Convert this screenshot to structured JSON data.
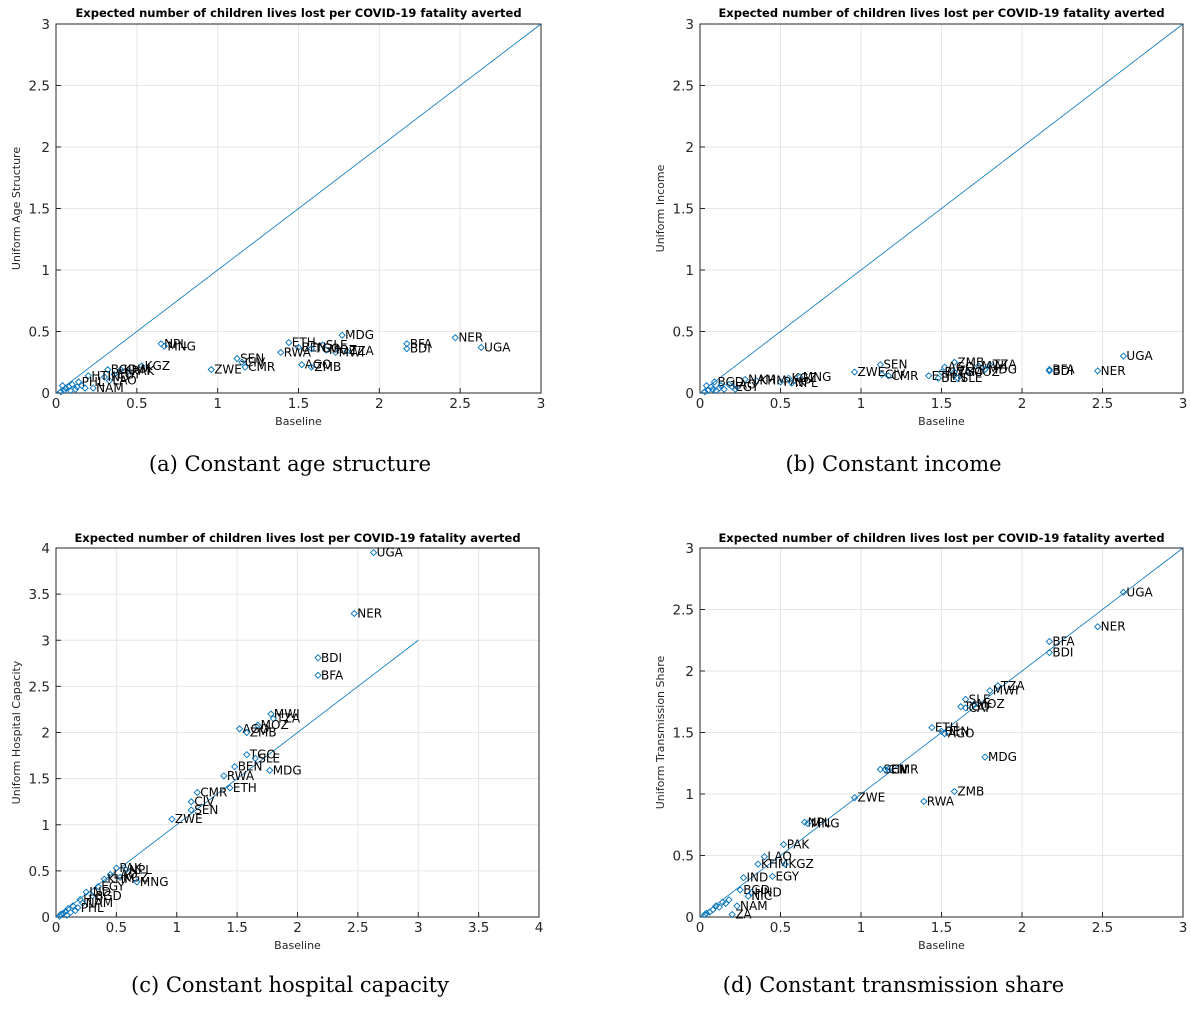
{
  "chart_data": [
    {
      "type": "scatter",
      "panel_id": "a",
      "title": "Expected number of children lives lost per COVID-19 fatality averted",
      "xlabel": "Baseline",
      "ylabel": "Uniform Age Structure",
      "xlim": [
        0,
        3
      ],
      "ylim": [
        0,
        3
      ],
      "xticks": [
        "0",
        "0.5",
        "1",
        "1.5",
        "2",
        "2.5",
        "3"
      ],
      "yticks": [
        "0",
        "0.5",
        "1",
        "1.5",
        "2",
        "2.5",
        "3"
      ],
      "grid": true,
      "reference_line": "y = x",
      "caption": "(a) Constant age structure",
      "points": [
        {
          "x": 2.63,
          "y": 0.37,
          "label": "UGA"
        },
        {
          "x": 2.47,
          "y": 0.45,
          "label": "NER"
        },
        {
          "x": 2.17,
          "y": 0.4,
          "label": "BFA"
        },
        {
          "x": 2.17,
          "y": 0.36,
          "label": "BDI"
        },
        {
          "x": 1.77,
          "y": 0.47,
          "label": "MDG"
        },
        {
          "x": 1.8,
          "y": 0.34,
          "label": "TZA"
        },
        {
          "x": 1.73,
          "y": 0.33,
          "label": "MWI"
        },
        {
          "x": 1.67,
          "y": 0.35,
          "label": "MOZ"
        },
        {
          "x": 1.65,
          "y": 0.39,
          "label": "SLE"
        },
        {
          "x": 1.44,
          "y": 0.41,
          "label": "ETH"
        },
        {
          "x": 1.5,
          "y": 0.37,
          "label": "BEN"
        },
        {
          "x": 1.58,
          "y": 0.36,
          "label": "TGO"
        },
        {
          "x": 1.39,
          "y": 0.33,
          "label": "RWA"
        },
        {
          "x": 1.52,
          "y": 0.23,
          "label": "AGO"
        },
        {
          "x": 1.58,
          "y": 0.21,
          "label": "ZMB"
        },
        {
          "x": 1.12,
          "y": 0.28,
          "label": "SEN"
        },
        {
          "x": 1.15,
          "y": 0.25,
          "label": "CIV"
        },
        {
          "x": 1.17,
          "y": 0.21,
          "label": "CMR"
        },
        {
          "x": 0.96,
          "y": 0.19,
          "label": "ZWE"
        },
        {
          "x": 0.65,
          "y": 0.4,
          "label": "NPL"
        },
        {
          "x": 0.67,
          "y": 0.38,
          "label": "MNG"
        },
        {
          "x": 0.53,
          "y": 0.22,
          "label": "KGZ"
        },
        {
          "x": 0.45,
          "y": 0.18,
          "label": "PAK"
        },
        {
          "x": 0.4,
          "y": 0.19,
          "label": "KHM"
        },
        {
          "x": 0.32,
          "y": 0.19,
          "label": "BGD"
        },
        {
          "x": 0.36,
          "y": 0.15,
          "label": "EGY"
        },
        {
          "x": 0.3,
          "y": 0.13,
          "label": "IND"
        },
        {
          "x": 0.33,
          "y": 0.1,
          "label": "LAO"
        },
        {
          "x": 0.2,
          "y": 0.14,
          "label": "HTI"
        },
        {
          "x": 0.23,
          "y": 0.04,
          "label": "NAM"
        },
        {
          "x": 0.14,
          "y": 0.09,
          "label": "PHL"
        },
        {
          "x": 0.1,
          "y": 0.07,
          "label": ""
        },
        {
          "x": 0.08,
          "y": 0.05,
          "label": ""
        },
        {
          "x": 0.06,
          "y": 0.04,
          "label": ""
        },
        {
          "x": 0.05,
          "y": 0.02,
          "label": ""
        },
        {
          "x": 0.12,
          "y": 0.03,
          "label": ""
        },
        {
          "x": 0.16,
          "y": 0.06,
          "label": ""
        },
        {
          "x": 0.18,
          "y": 0.04,
          "label": ""
        },
        {
          "x": 0.04,
          "y": 0.06,
          "label": ""
        },
        {
          "x": 0.03,
          "y": 0.01,
          "label": ""
        },
        {
          "x": 0.09,
          "y": 0.02,
          "label": ""
        },
        {
          "x": 0.13,
          "y": 0.05,
          "label": ""
        }
      ]
    },
    {
      "type": "scatter",
      "panel_id": "b",
      "title": "Expected number of children lives lost per COVID-19 fatality averted",
      "xlabel": "Baseline",
      "ylabel": "Uniform Income",
      "xlim": [
        0,
        3
      ],
      "ylim": [
        0,
        3
      ],
      "xticks": [
        "0",
        "0.5",
        "1",
        "1.5",
        "2",
        "2.5",
        "3"
      ],
      "yticks": [
        "0",
        "0.5",
        "1",
        "1.5",
        "2",
        "2.5",
        "3"
      ],
      "grid": true,
      "reference_line": "y = x",
      "caption": "(b) Constant income",
      "points": [
        {
          "x": 2.63,
          "y": 0.3,
          "label": "UGA"
        },
        {
          "x": 2.47,
          "y": 0.18,
          "label": "NER"
        },
        {
          "x": 2.17,
          "y": 0.19,
          "label": "BFA"
        },
        {
          "x": 2.17,
          "y": 0.18,
          "label": "BDI"
        },
        {
          "x": 1.8,
          "y": 0.23,
          "label": "TZA"
        },
        {
          "x": 1.73,
          "y": 0.22,
          "label": "MWI"
        },
        {
          "x": 1.67,
          "y": 0.17,
          "label": "MOZ"
        },
        {
          "x": 1.77,
          "y": 0.19,
          "label": "MDG"
        },
        {
          "x": 1.58,
          "y": 0.25,
          "label": "ZMB"
        },
        {
          "x": 1.52,
          "y": 0.21,
          "label": "AGO"
        },
        {
          "x": 1.5,
          "y": 0.17,
          "label": "RWA"
        },
        {
          "x": 1.58,
          "y": 0.17,
          "label": "TGO"
        },
        {
          "x": 1.42,
          "y": 0.14,
          "label": "ETH"
        },
        {
          "x": 1.48,
          "y": 0.12,
          "label": "BEN"
        },
        {
          "x": 1.6,
          "y": 0.12,
          "label": "SLE"
        },
        {
          "x": 1.12,
          "y": 0.23,
          "label": "SEN"
        },
        {
          "x": 1.13,
          "y": 0.15,
          "label": "CIV"
        },
        {
          "x": 1.17,
          "y": 0.14,
          "label": "CMR"
        },
        {
          "x": 0.96,
          "y": 0.17,
          "label": "ZWE"
        },
        {
          "x": 0.62,
          "y": 0.13,
          "label": "MNG"
        },
        {
          "x": 0.55,
          "y": 0.12,
          "label": "KGZ"
        },
        {
          "x": 0.5,
          "y": 0.09,
          "label": "PAK"
        },
        {
          "x": 0.57,
          "y": 0.08,
          "label": "NPL"
        },
        {
          "x": 0.35,
          "y": 0.1,
          "label": "KHM"
        },
        {
          "x": 0.28,
          "y": 0.11,
          "label": "NAM"
        },
        {
          "x": 0.18,
          "y": 0.07,
          "label": "LAO"
        },
        {
          "x": 0.09,
          "y": 0.09,
          "label": "BGD"
        },
        {
          "x": 0.2,
          "y": 0.05,
          "label": "EGY"
        },
        {
          "x": 0.07,
          "y": 0.05,
          "label": ""
        },
        {
          "x": 0.12,
          "y": 0.04,
          "label": ""
        },
        {
          "x": 0.05,
          "y": 0.02,
          "label": ""
        },
        {
          "x": 0.15,
          "y": 0.03,
          "label": ""
        },
        {
          "x": 0.04,
          "y": 0.06,
          "label": ""
        },
        {
          "x": 0.1,
          "y": 0.02,
          "label": ""
        },
        {
          "x": 0.03,
          "y": 0.01,
          "label": ""
        },
        {
          "x": 0.13,
          "y": 0.06,
          "label": ""
        },
        {
          "x": 0.22,
          "y": 0.03,
          "label": ""
        },
        {
          "x": 0.08,
          "y": 0.03,
          "label": ""
        }
      ]
    },
    {
      "type": "scatter",
      "panel_id": "c",
      "title": "Expected number of children lives lost per COVID-19 fatality averted",
      "xlabel": "Baseline",
      "ylabel": "Uniform Hospital Capacity",
      "xlim": [
        0,
        4
      ],
      "ylim": [
        0,
        4
      ],
      "xticks": [
        "0",
        "0.5",
        "1",
        "1.5",
        "2",
        "2.5",
        "3",
        "3.5",
        "4"
      ],
      "yticks": [
        "0",
        "0.5",
        "1",
        "1.5",
        "2",
        "2.5",
        "3",
        "3.5",
        "4"
      ],
      "grid": true,
      "reference_line": "y = x",
      "caption": "(c) Constant hospital capacity",
      "points": [
        {
          "x": 2.63,
          "y": 3.95,
          "label": "UGA"
        },
        {
          "x": 2.47,
          "y": 3.29,
          "label": "NER"
        },
        {
          "x": 2.17,
          "y": 2.81,
          "label": "BDI"
        },
        {
          "x": 2.17,
          "y": 2.62,
          "label": "BFA"
        },
        {
          "x": 1.78,
          "y": 2.2,
          "label": "MWI"
        },
        {
          "x": 1.8,
          "y": 2.15,
          "label": "TZA"
        },
        {
          "x": 1.67,
          "y": 2.08,
          "label": "MOZ"
        },
        {
          "x": 1.52,
          "y": 2.04,
          "label": "AGO"
        },
        {
          "x": 1.58,
          "y": 2.0,
          "label": "ZMB"
        },
        {
          "x": 1.58,
          "y": 1.76,
          "label": "TGO"
        },
        {
          "x": 1.65,
          "y": 1.72,
          "label": "SLE"
        },
        {
          "x": 1.77,
          "y": 1.59,
          "label": "MDG"
        },
        {
          "x": 1.48,
          "y": 1.63,
          "label": "BEN"
        },
        {
          "x": 1.39,
          "y": 1.53,
          "label": "RWA"
        },
        {
          "x": 1.44,
          "y": 1.4,
          "label": "ETH"
        },
        {
          "x": 1.17,
          "y": 1.35,
          "label": "CMR"
        },
        {
          "x": 1.12,
          "y": 1.25,
          "label": "CIV"
        },
        {
          "x": 1.12,
          "y": 1.16,
          "label": "SEN"
        },
        {
          "x": 0.96,
          "y": 1.06,
          "label": "ZWE"
        },
        {
          "x": 0.5,
          "y": 0.53,
          "label": "PAK"
        },
        {
          "x": 0.58,
          "y": 0.51,
          "label": "NPL"
        },
        {
          "x": 0.45,
          "y": 0.46,
          "label": "LAO"
        },
        {
          "x": 0.53,
          "y": 0.43,
          "label": "KGZ"
        },
        {
          "x": 0.67,
          "y": 0.38,
          "label": "MNG"
        },
        {
          "x": 0.4,
          "y": 0.41,
          "label": "KHM"
        },
        {
          "x": 0.35,
          "y": 0.33,
          "label": "EGY"
        },
        {
          "x": 0.25,
          "y": 0.27,
          "label": "IND"
        },
        {
          "x": 0.3,
          "y": 0.23,
          "label": "BGD"
        },
        {
          "x": 0.2,
          "y": 0.19,
          "label": "HTI"
        },
        {
          "x": 0.22,
          "y": 0.15,
          "label": "NAM"
        },
        {
          "x": 0.18,
          "y": 0.1,
          "label": "PHL"
        },
        {
          "x": 0.14,
          "y": 0.12,
          "label": ""
        },
        {
          "x": 0.1,
          "y": 0.09,
          "label": ""
        },
        {
          "x": 0.08,
          "y": 0.06,
          "label": ""
        },
        {
          "x": 0.06,
          "y": 0.04,
          "label": ""
        },
        {
          "x": 0.04,
          "y": 0.03,
          "label": ""
        },
        {
          "x": 0.12,
          "y": 0.05,
          "label": ""
        },
        {
          "x": 0.16,
          "y": 0.07,
          "label": ""
        },
        {
          "x": 0.03,
          "y": 0.01,
          "label": ""
        },
        {
          "x": 0.09,
          "y": 0.02,
          "label": ""
        }
      ]
    },
    {
      "type": "scatter",
      "panel_id": "d",
      "title": "Expected number of children lives lost per COVID-19 fatality averted",
      "xlabel": "Baseline",
      "ylabel": "Uniform Transmission Share",
      "xlim": [
        0,
        3
      ],
      "ylim": [
        0,
        3
      ],
      "xticks": [
        "0",
        "0.5",
        "1",
        "1.5",
        "2",
        "2.5",
        "3"
      ],
      "yticks": [
        "0",
        "0.5",
        "1",
        "1.5",
        "2",
        "2.5",
        "3"
      ],
      "grid": true,
      "reference_line": "y = x",
      "caption": "(d) Constant transmission share",
      "points": [
        {
          "x": 2.63,
          "y": 2.64,
          "label": "UGA"
        },
        {
          "x": 2.47,
          "y": 2.36,
          "label": "NER"
        },
        {
          "x": 2.17,
          "y": 2.24,
          "label": "BFA"
        },
        {
          "x": 2.17,
          "y": 2.15,
          "label": "BDI"
        },
        {
          "x": 1.85,
          "y": 1.88,
          "label": "TZA"
        },
        {
          "x": 1.8,
          "y": 1.84,
          "label": "MWI"
        },
        {
          "x": 1.65,
          "y": 1.77,
          "label": "SLE"
        },
        {
          "x": 1.7,
          "y": 1.73,
          "label": "MOZ"
        },
        {
          "x": 1.62,
          "y": 1.71,
          "label": "TGO"
        },
        {
          "x": 1.65,
          "y": 1.7,
          "label": "CAF"
        },
        {
          "x": 1.44,
          "y": 1.54,
          "label": "ETH"
        },
        {
          "x": 1.5,
          "y": 1.51,
          "label": "BEN"
        },
        {
          "x": 1.52,
          "y": 1.49,
          "label": "AGO"
        },
        {
          "x": 1.77,
          "y": 1.3,
          "label": "MDG"
        },
        {
          "x": 1.12,
          "y": 1.2,
          "label": "SEN"
        },
        {
          "x": 1.15,
          "y": 1.2,
          "label": "CIV"
        },
        {
          "x": 1.17,
          "y": 1.2,
          "label": "CMR"
        },
        {
          "x": 1.58,
          "y": 1.02,
          "label": "ZMB"
        },
        {
          "x": 0.96,
          "y": 0.97,
          "label": "ZWE"
        },
        {
          "x": 1.39,
          "y": 0.94,
          "label": "RWA"
        },
        {
          "x": 0.65,
          "y": 0.77,
          "label": "NPL"
        },
        {
          "x": 0.67,
          "y": 0.76,
          "label": "MNG"
        },
        {
          "x": 0.52,
          "y": 0.59,
          "label": "PAK"
        },
        {
          "x": 0.4,
          "y": 0.49,
          "label": "LAO"
        },
        {
          "x": 0.36,
          "y": 0.43,
          "label": "KHM"
        },
        {
          "x": 0.53,
          "y": 0.43,
          "label": "KGZ"
        },
        {
          "x": 0.27,
          "y": 0.32,
          "label": "IND"
        },
        {
          "x": 0.45,
          "y": 0.33,
          "label": "EGY"
        },
        {
          "x": 0.25,
          "y": 0.22,
          "label": "BGD"
        },
        {
          "x": 0.32,
          "y": 0.2,
          "label": "HND"
        },
        {
          "x": 0.3,
          "y": 0.17,
          "label": "NIC"
        },
        {
          "x": 0.23,
          "y": 0.09,
          "label": "NAM"
        },
        {
          "x": 0.2,
          "y": 0.02,
          "label": "ZA"
        },
        {
          "x": 0.14,
          "y": 0.12,
          "label": ""
        },
        {
          "x": 0.1,
          "y": 0.09,
          "label": ""
        },
        {
          "x": 0.08,
          "y": 0.06,
          "label": ""
        },
        {
          "x": 0.06,
          "y": 0.04,
          "label": ""
        },
        {
          "x": 0.04,
          "y": 0.03,
          "label": ""
        },
        {
          "x": 0.12,
          "y": 0.08,
          "label": ""
        },
        {
          "x": 0.16,
          "y": 0.11,
          "label": ""
        },
        {
          "x": 0.18,
          "y": 0.14,
          "label": ""
        },
        {
          "x": 0.03,
          "y": 0.02,
          "label": ""
        }
      ]
    }
  ]
}
